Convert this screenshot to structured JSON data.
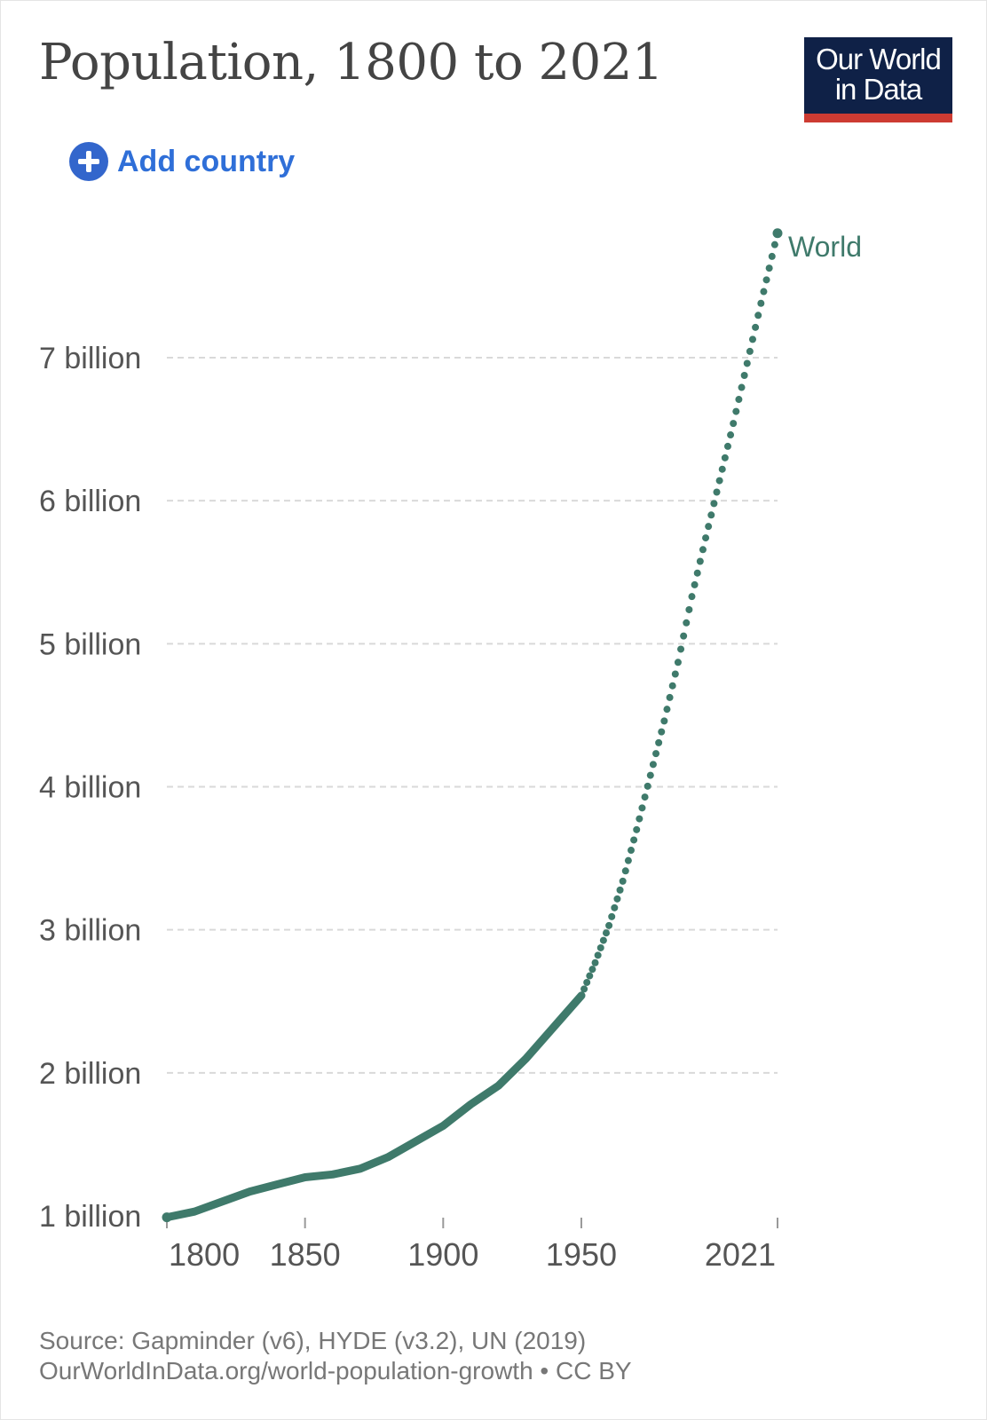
{
  "title": "Population, 1800 to 2021",
  "logo": {
    "line1": "Our World",
    "line2": "in Data"
  },
  "controls": {
    "add_country_label": "Add country"
  },
  "footer": {
    "source": "Source: Gapminder (v6), HYDE (v3.2), UN (2019)",
    "link": "OurWorldInData.org/world-population-growth • CC BY"
  },
  "colors": {
    "series": "#3f7a6b",
    "grid": "#d9d9d9",
    "axis_text": "#555555",
    "logo_bg": "#0f2147",
    "logo_accent": "#cd3b32",
    "link": "#2f6fd8"
  },
  "chart_data": {
    "type": "line",
    "title": "Population, 1800 to 2021",
    "xlim": [
      1800,
      2021
    ],
    "ylim": [
      1000000000,
      7900000000
    ],
    "x_ticks": [
      1800,
      1850,
      1900,
      1950,
      2021
    ],
    "x_tick_labels": [
      "1800",
      "1850",
      "1900",
      "1950",
      "2021"
    ],
    "y_ticks": [
      1000000000,
      2000000000,
      3000000000,
      4000000000,
      5000000000,
      6000000000,
      7000000000
    ],
    "y_tick_labels": [
      "1 billion",
      "2 billion",
      "3 billion",
      "4 billion",
      "5 billion",
      "6 billion",
      "7 billion"
    ],
    "grid": true,
    "series": [
      {
        "name": "World",
        "color": "#3f7a6b",
        "points": [
          [
            1800,
            990000000
          ],
          [
            1810,
            1030000000
          ],
          [
            1820,
            1100000000
          ],
          [
            1830,
            1170000000
          ],
          [
            1840,
            1220000000
          ],
          [
            1850,
            1270000000
          ],
          [
            1860,
            1290000000
          ],
          [
            1870,
            1330000000
          ],
          [
            1880,
            1410000000
          ],
          [
            1890,
            1520000000
          ],
          [
            1900,
            1630000000
          ],
          [
            1910,
            1780000000
          ],
          [
            1920,
            1910000000
          ],
          [
            1930,
            2100000000
          ],
          [
            1940,
            2320000000
          ],
          [
            1950,
            2540000000
          ],
          [
            1955,
            2770000000
          ],
          [
            1960,
            3030000000
          ],
          [
            1965,
            3340000000
          ],
          [
            1970,
            3700000000
          ],
          [
            1975,
            4080000000
          ],
          [
            1980,
            4460000000
          ],
          [
            1985,
            4870000000
          ],
          [
            1990,
            5330000000
          ],
          [
            1995,
            5740000000
          ],
          [
            2000,
            6140000000
          ],
          [
            2005,
            6540000000
          ],
          [
            2010,
            6960000000
          ],
          [
            2015,
            7380000000
          ],
          [
            2020,
            7790000000
          ],
          [
            2021,
            7870000000
          ]
        ]
      }
    ]
  }
}
